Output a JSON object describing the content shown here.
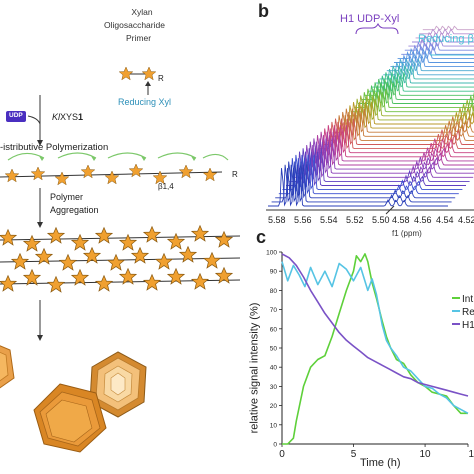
{
  "panel_a": {
    "title": "Xylan Oligosaccharide Primer",
    "title_lines": [
      "Xylan",
      "Oligosaccharide",
      "Primer"
    ],
    "reducing_label": "Reducing Xyl",
    "r_label": "R",
    "udp_label": "UDP",
    "enzyme_prefix": "Kl",
    "enzyme_main": "XYS",
    "enzyme_suffix": "1",
    "step_polymerization": "-istributive Polymerization",
    "linkage": "β1,4",
    "r_label_chain": "R",
    "step_aggregation_lines": [
      "Polymer",
      "Aggregation"
    ],
    "star_color": "#f0a030",
    "udp_color": "#4a2fc0",
    "reducing_color": "#2c8fb8",
    "arc_color": "#7cc86a"
  },
  "panel_b": {
    "letter": "b",
    "peak_label": "H1 UDP-Xyl",
    "peak_color": "#7a3fbf",
    "reducing_label": "Reducing β",
    "reducing_color": "#49c4d9",
    "ticks": [
      "5.58",
      "5.56",
      "5.54",
      "5.52",
      "5.50",
      "4.58",
      "4.56",
      "4.54",
      "4.52"
    ],
    "axis_label": "f1 (ppm)"
  },
  "panel_c": {
    "letter": "c",
    "chart_data": {
      "type": "line",
      "ylabel": "relative signal intensity (%)",
      "xlabel": "Time (h)",
      "xlim": [
        0,
        13
      ],
      "ylim": [
        0,
        100
      ],
      "xticks": [
        "0",
        "5",
        "10",
        "1"
      ],
      "yticks": [
        "0",
        "10",
        "20",
        "30",
        "40",
        "50",
        "60",
        "70",
        "80",
        "90",
        "100"
      ],
      "series": [
        {
          "name": "Int",
          "color": "#5ed03a",
          "x": [
            0,
            0.4,
            0.8,
            1.0,
            1.5,
            2.0,
            2.5,
            3.0,
            3.5,
            4.0,
            4.5,
            5.0,
            5.2,
            5.5,
            5.8,
            6.0,
            6.3,
            6.6,
            7.0,
            7.3,
            7.6,
            8.0,
            8.5,
            9.0,
            9.5,
            10.0,
            10.5,
            11.0,
            11.5,
            12.0,
            12.5,
            13.0
          ],
          "y": [
            0,
            0,
            3,
            12,
            30,
            40,
            44,
            46,
            56,
            68,
            80,
            90,
            98,
            95,
            99,
            95,
            84,
            76,
            64,
            56,
            50,
            44,
            42,
            36,
            32,
            30,
            27,
            26,
            25,
            20,
            16,
            16
          ]
        },
        {
          "name": "Re",
          "color": "#56c4e4",
          "x": [
            0,
            0.4,
            0.8,
            1.2,
            1.6,
            2.0,
            2.5,
            3.0,
            3.5,
            4.0,
            4.5,
            5.0,
            5.5,
            6.0,
            6.3,
            6.6,
            7.0,
            7.3,
            7.6,
            8.0,
            8.5,
            9.0,
            9.5,
            10.0,
            10.5,
            11.0,
            11.5,
            12.0,
            12.5,
            13.0
          ],
          "y": [
            95,
            85,
            93,
            88,
            82,
            92,
            83,
            90,
            82,
            94,
            91,
            85,
            92,
            80,
            86,
            78,
            62,
            54,
            50,
            46,
            40,
            38,
            34,
            30,
            29,
            26,
            24,
            20,
            18,
            16
          ]
        },
        {
          "name": "H1",
          "color": "#7a52c6",
          "x": [
            0,
            0.5,
            1.0,
            1.5,
            2.0,
            2.5,
            3.0,
            3.5,
            4.0,
            4.5,
            5.0,
            5.5,
            6.0,
            6.5,
            7.0,
            7.5,
            8.0,
            8.5,
            9.0,
            9.5,
            10.0,
            10.5,
            11.0,
            11.5,
            12.0,
            12.5,
            13.0
          ],
          "y": [
            99,
            97,
            93,
            87,
            80,
            74,
            68,
            63,
            58,
            54,
            51,
            48,
            45,
            43,
            41,
            39,
            37,
            35,
            34,
            32,
            31,
            30,
            29,
            28,
            27,
            26,
            25
          ]
        }
      ],
      "legend_labels": [
        "Int",
        "Re",
        "H1"
      ]
    }
  }
}
